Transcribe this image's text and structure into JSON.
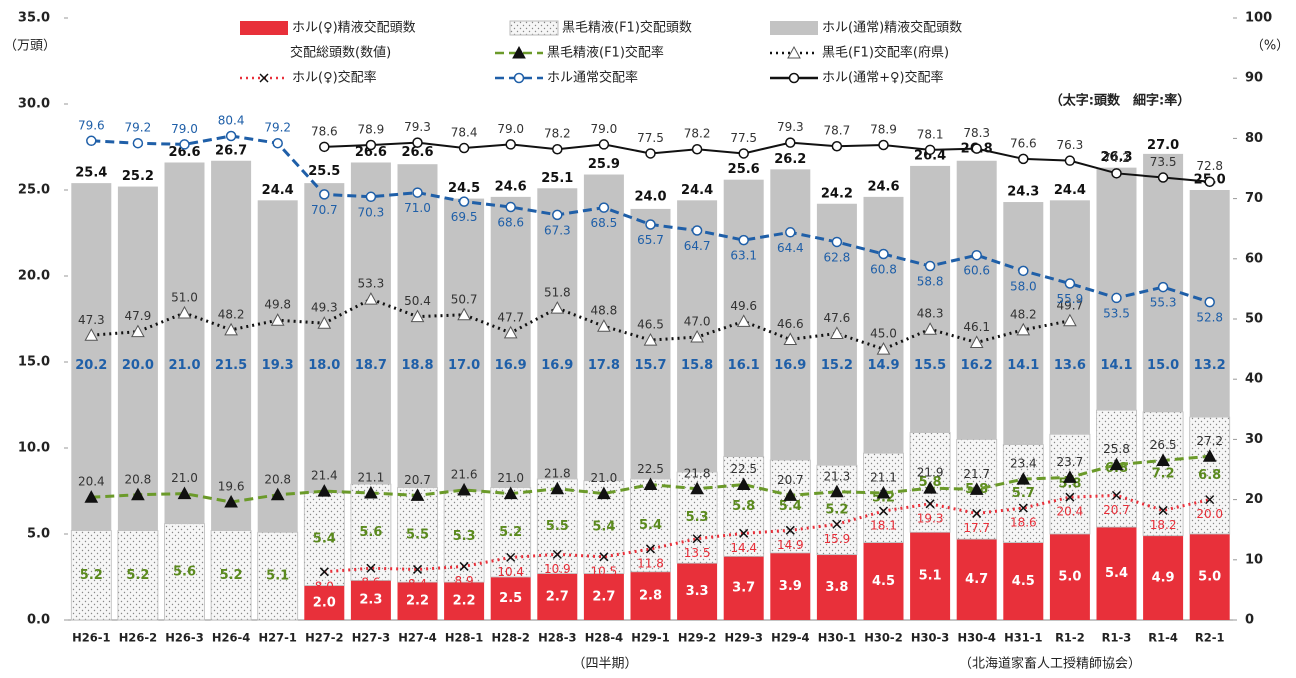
{
  "chart_data": {
    "type": "bar",
    "y_label": "（万頭）",
    "y2_label": "（%）",
    "x_label": "（四半期）",
    "source": "（北海道家畜人工授精師協会）",
    "annotation": "（太字:頭数　細字:率）",
    "categories": [
      "H26-1",
      "H26-2",
      "H26-3",
      "H26-4",
      "H27-1",
      "H27-2",
      "H27-3",
      "H27-4",
      "H28-1",
      "H28-2",
      "H28-3",
      "H28-4",
      "H29-1",
      "H29-2",
      "H29-3",
      "H29-4",
      "H30-1",
      "H30-2",
      "H30-3",
      "H30-4",
      "H31-1",
      "R1-2",
      "R1-3",
      "R1-4",
      "R2-1"
    ],
    "ylim": [
      0,
      35
    ],
    "yticks": [
      {
        "value": 0,
        "label": "0.0"
      },
      {
        "value": 5,
        "label": "5.0"
      },
      {
        "value": 10,
        "label": "10.0"
      },
      {
        "value": 15,
        "label": "15.0"
      },
      {
        "value": 20,
        "label": "20.0"
      },
      {
        "value": 25,
        "label": "25.0"
      },
      {
        "value": 30,
        "label": "30.0"
      },
      {
        "value": 35,
        "label": "35.0"
      }
    ],
    "y2lim": [
      0,
      100
    ],
    "y2ticks": [
      0,
      10,
      20,
      30,
      40,
      50,
      60,
      70,
      80,
      90,
      100
    ],
    "series": [
      {
        "name": "ホル(♀)精液交配頭数",
        "type": "bar",
        "color": "#e8303a",
        "values": [
          null,
          null,
          null,
          null,
          null,
          2.0,
          2.3,
          2.2,
          2.2,
          2.5,
          2.7,
          2.7,
          2.8,
          3.3,
          3.7,
          3.9,
          3.8,
          4.5,
          5.1,
          4.7,
          4.5,
          5.0,
          5.4,
          4.9,
          5.0
        ],
        "value_labels": [
          null,
          null,
          null,
          null,
          null,
          "2.0",
          "2.3",
          "2.2",
          "2.2",
          "2.5",
          "2.7",
          "2.7",
          "2.8",
          "3.3",
          "3.7",
          "3.9",
          "3.8",
          "4.5",
          "5.1",
          "4.7",
          "4.5",
          "5.0",
          "5.4",
          "4.9",
          "5.0"
        ],
        "label_color": "#ffffff"
      },
      {
        "name": "黒毛精液(F1)交配頭数",
        "type": "bar",
        "color": "#f4f4f4",
        "values": [
          5.2,
          5.2,
          5.6,
          5.2,
          5.1,
          5.4,
          5.6,
          5.5,
          5.3,
          5.2,
          5.5,
          5.4,
          5.4,
          5.3,
          5.8,
          5.4,
          5.2,
          5.2,
          5.8,
          5.8,
          5.7,
          5.8,
          6.8,
          7.2,
          6.8
        ],
        "value_labels": [
          "5.2",
          "5.2",
          "5.6",
          "5.2",
          "5.1",
          "5.4",
          "5.6",
          "5.5",
          "5.3",
          "5.2",
          "5.5",
          "5.4",
          "5.4",
          "5.3",
          "5.8",
          "5.4",
          "5.2",
          "5.2",
          "5.8",
          "5.8",
          "5.7",
          "5.8",
          "6.8",
          "7.2",
          "6.8"
        ],
        "label_color": "#5b8a1e"
      },
      {
        "name": "ホル(通常)精液交配頭数",
        "type": "bar",
        "color": "#c3c3c3",
        "values": [
          20.2,
          20.0,
          21.0,
          21.5,
          19.3,
          18.0,
          18.7,
          18.8,
          17.0,
          16.9,
          16.9,
          17.8,
          15.7,
          15.8,
          16.1,
          16.9,
          15.2,
          14.9,
          15.5,
          16.2,
          14.1,
          13.6,
          14.1,
          15.0,
          13.2
        ],
        "value_labels": [
          "20.2",
          "20.0",
          "21.0",
          "21.5",
          "19.3",
          "18.0",
          "18.7",
          "18.8",
          "17.0",
          "16.9",
          "16.9",
          "17.8",
          "15.7",
          "15.8",
          "16.1",
          "16.9",
          "15.2",
          "14.9",
          "15.5",
          "16.2",
          "14.1",
          "13.6",
          "14.1",
          "15.0",
          "13.2"
        ],
        "label_color": "#1f5fa8"
      },
      {
        "name": "交配総頭数(数値)",
        "type": "label",
        "color": "#111111",
        "values": [
          25.4,
          25.2,
          26.6,
          26.7,
          24.4,
          25.5,
          26.6,
          26.6,
          24.5,
          24.6,
          25.1,
          25.9,
          24.0,
          24.4,
          25.6,
          26.2,
          24.2,
          24.6,
          26.4,
          26.8,
          24.3,
          24.4,
          26.3,
          27.0,
          25.0
        ],
        "value_labels": [
          "25.4",
          "25.2",
          "26.6",
          "26.7",
          "24.4",
          "25.5",
          "26.6",
          "26.6",
          "24.5",
          "24.6",
          "25.1",
          "25.9",
          "24.0",
          "24.4",
          "25.6",
          "26.2",
          "24.2",
          "24.6",
          "26.4",
          "26.8",
          "24.3",
          "24.4",
          "26.3",
          "27.0",
          "25.0"
        ]
      },
      {
        "name": "黒毛精液(F1)交配率",
        "type": "line",
        "axis": "y2",
        "color": "#6b9a2a",
        "line_style": "dashed",
        "marker": "triangle-filled",
        "values": [
          20.4,
          20.8,
          21.0,
          19.6,
          20.8,
          21.4,
          21.1,
          20.7,
          21.6,
          21.0,
          21.8,
          21.0,
          22.5,
          21.8,
          22.5,
          20.7,
          21.3,
          21.1,
          21.9,
          21.7,
          23.4,
          23.7,
          25.8,
          26.5,
          27.2
        ],
        "value_labels": [
          "20.4",
          "20.8",
          "21.0",
          "19.6",
          "20.8",
          "21.4",
          "21.1",
          "20.7",
          "21.6",
          "21.0",
          "21.8",
          "21.0",
          "22.5",
          "21.8",
          "22.5",
          "20.7",
          "21.3",
          "21.1",
          "21.9",
          "21.7",
          "23.4",
          "23.7",
          "25.8",
          "26.5",
          "27.2"
        ],
        "label_color": "#333333"
      },
      {
        "name": "黒毛(F1)交配率(府県)",
        "type": "line",
        "axis": "y2",
        "color": "#111111",
        "line_style": "dotted",
        "marker": "triangle-open",
        "values": [
          47.3,
          47.9,
          51.0,
          48.2,
          49.8,
          49.3,
          53.3,
          50.4,
          50.7,
          47.7,
          51.8,
          48.8,
          46.5,
          47.0,
          49.6,
          46.6,
          47.6,
          45.0,
          48.3,
          46.1,
          48.2,
          49.7,
          null,
          null,
          null
        ],
        "value_labels": [
          "47.3",
          "47.9",
          "51.0",
          "48.2",
          "49.8",
          "49.3",
          "53.3",
          "50.4",
          "50.7",
          "47.7",
          "51.8",
          "48.8",
          "46.5",
          "47.0",
          "49.6",
          "46.6",
          "47.6",
          "45.0",
          "48.3",
          "46.1",
          "48.2",
          "49.7",
          null,
          null,
          null
        ],
        "label_color": "#333333"
      },
      {
        "name": "ホル(♀)交配率",
        "type": "line",
        "axis": "y2",
        "color": "#e8303a",
        "line_style": "dotted",
        "marker": "x",
        "values": [
          null,
          null,
          null,
          null,
          null,
          8.0,
          8.6,
          8.4,
          8.9,
          10.4,
          10.9,
          10.5,
          11.8,
          13.5,
          14.4,
          14.9,
          15.9,
          18.1,
          19.3,
          17.7,
          18.6,
          20.4,
          20.7,
          18.2,
          20.0
        ],
        "value_labels": [
          null,
          null,
          null,
          null,
          null,
          "8.0",
          "8.6",
          "8.4",
          "8.9",
          "10.4",
          "10.9",
          "10.5",
          "11.8",
          "13.5",
          "14.4",
          "14.9",
          "15.9",
          "18.1",
          "19.3",
          "17.7",
          "18.6",
          "20.4",
          "20.7",
          "18.2",
          "20.0"
        ],
        "label_color": "#e8303a"
      },
      {
        "name": "ホル通常交配率",
        "type": "line",
        "axis": "y2",
        "color": "#1f5fa8",
        "line_style": "dashed",
        "marker": "circle-open",
        "values": [
          79.6,
          79.2,
          79.0,
          80.4,
          79.2,
          70.7,
          70.3,
          71.0,
          69.5,
          68.6,
          67.3,
          68.5,
          65.7,
          64.7,
          63.1,
          64.4,
          62.8,
          60.8,
          58.8,
          60.6,
          58.0,
          55.9,
          53.5,
          55.3,
          52.8
        ],
        "value_labels": [
          "79.6",
          "79.2",
          "79.0",
          "80.4",
          "79.2",
          "70.7",
          "70.3",
          "71.0",
          "69.5",
          "68.6",
          "67.3",
          "68.5",
          "65.7",
          "64.7",
          "63.1",
          "64.4",
          "62.8",
          "60.8",
          "58.8",
          "60.6",
          "58.0",
          "55.9",
          "53.5",
          "55.3",
          "52.8"
        ],
        "label_color": "#1f5fa8"
      },
      {
        "name": "ホル(通常+♀)交配率",
        "type": "line",
        "axis": "y2",
        "color": "#111111",
        "line_style": "solid",
        "marker": "circle-open",
        "values": [
          null,
          null,
          null,
          null,
          null,
          78.6,
          78.9,
          79.3,
          78.4,
          79.0,
          78.2,
          79.0,
          77.5,
          78.2,
          77.5,
          79.3,
          78.7,
          78.9,
          78.1,
          78.3,
          76.6,
          76.3,
          74.2,
          73.5,
          72.8
        ],
        "value_labels": [
          null,
          null,
          null,
          null,
          null,
          "78.6",
          "78.9",
          "79.3",
          "78.4",
          "79.0",
          "78.2",
          "79.0",
          "77.5",
          "78.2",
          "77.5",
          "79.3",
          "78.7",
          "78.9",
          "78.1",
          "78.3",
          "76.6",
          "76.3",
          "74.2",
          "73.5",
          "72.8"
        ],
        "label_color": "#333333"
      }
    ]
  }
}
